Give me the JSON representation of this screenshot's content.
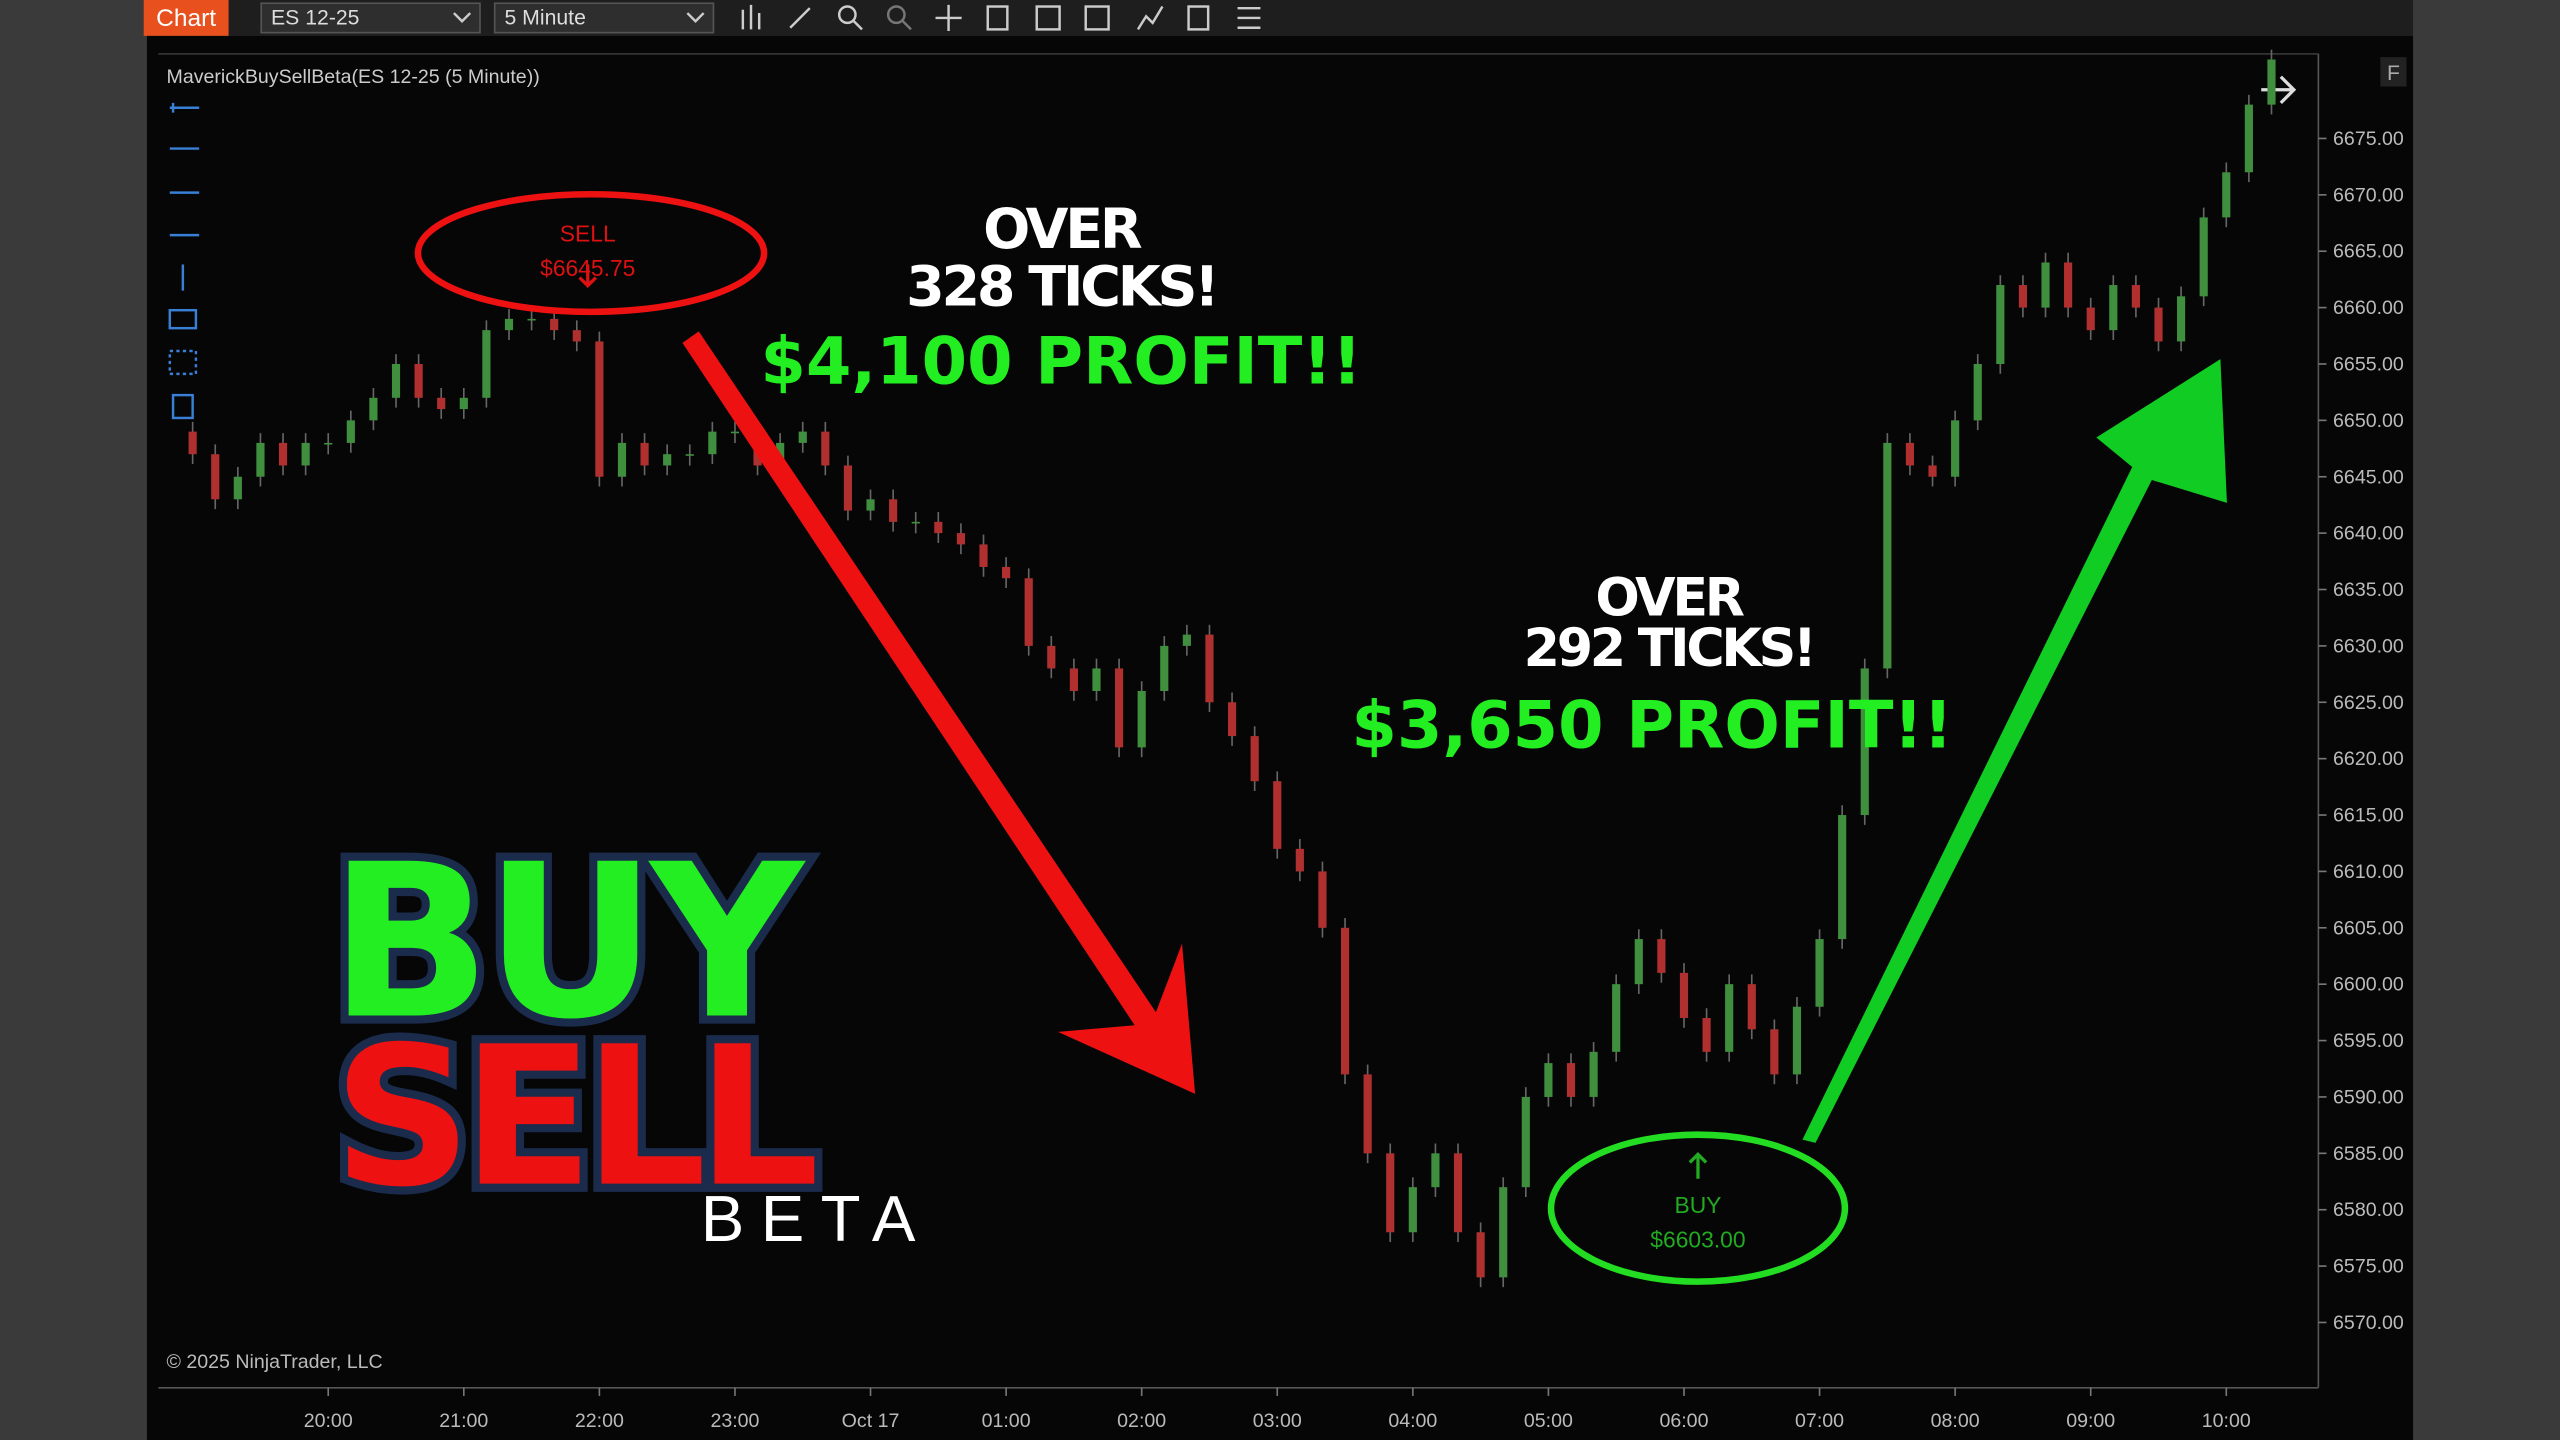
{
  "toolbar": {
    "chart_button": "Chart",
    "instrument": "ES 12-25",
    "interval": "5 Minute"
  },
  "chart": {
    "type": "candlestick",
    "indicator_label": "MaverickBuySellBeta(ES 12-25 (5 Minute))",
    "copyright": "© 2025 NinjaTrader, LLC",
    "corner_button": "F",
    "ylim": [
      6564.5,
      6682.5
    ],
    "yticks": [
      {
        "value": 6570,
        "label": "6570.00"
      },
      {
        "value": 6575,
        "label": "6575.00"
      },
      {
        "value": 6580,
        "label": "6580.00"
      },
      {
        "value": 6585,
        "label": "6585.00"
      },
      {
        "value": 6590,
        "label": "6590.00"
      },
      {
        "value": 6595,
        "label": "6595.00"
      },
      {
        "value": 6600,
        "label": "6600.00"
      },
      {
        "value": 6605,
        "label": "6605.00"
      },
      {
        "value": 6610,
        "label": "6610.00"
      },
      {
        "value": 6615,
        "label": "6615.00"
      },
      {
        "value": 6620,
        "label": "6620.00"
      },
      {
        "value": 6625,
        "label": "6625.00"
      },
      {
        "value": 6630,
        "label": "6630.00"
      },
      {
        "value": 6635,
        "label": "6635.00"
      },
      {
        "value": 6640,
        "label": "6640.00"
      },
      {
        "value": 6645,
        "label": "6645.00"
      },
      {
        "value": 6650,
        "label": "6650.00"
      },
      {
        "value": 6655,
        "label": "6655.00"
      },
      {
        "value": 6660,
        "label": "6660.00"
      },
      {
        "value": 6665,
        "label": "6665.00"
      },
      {
        "value": 6670,
        "label": "6670.00"
      },
      {
        "value": 6675,
        "label": "6675.00"
      }
    ],
    "time_labels": [
      "20:00",
      "21:00",
      "22:00",
      "23:00",
      "Oct 17",
      "01:00",
      "02:00",
      "03:00",
      "04:00",
      "05:00",
      "06:00",
      "07:00",
      "08:00",
      "09:00",
      "10:00"
    ],
    "first_open": 6649,
    "closes": [
      6647,
      6643,
      6645,
      6648,
      6646,
      6648,
      6648,
      6650,
      6652,
      6655,
      6652,
      6651,
      6652,
      6658,
      6659,
      6659,
      6658,
      6657,
      6645,
      6648,
      6646,
      6647,
      6647,
      6649,
      6649,
      6646,
      6648,
      6649,
      6646,
      6642,
      6643,
      6641,
      6641,
      6640,
      6639,
      6637,
      6636,
      6630,
      6628,
      6626,
      6628,
      6621,
      6626,
      6630,
      6631,
      6625,
      6622,
      6618,
      6612,
      6610,
      6605,
      6592,
      6585,
      6578,
      6582,
      6585,
      6578,
      6574,
      6582,
      6590,
      6593,
      6590,
      6594,
      6600,
      6604,
      6601,
      6597,
      6594,
      6600,
      6596,
      6592,
      6598,
      6604,
      6615,
      6628,
      6648,
      6646,
      6645,
      6650,
      6655,
      6662,
      6660,
      6664,
      6660,
      6658,
      6662,
      6660,
      6657,
      6661,
      6668,
      6672,
      6678,
      6682
    ],
    "up_color": "#3f8f3f",
    "down_color": "#b03030"
  },
  "signals": {
    "sell_label": "SELL",
    "sell_price": "$6645.75",
    "buy_label": "BUY",
    "buy_price": "$6603.00"
  },
  "promo": {
    "trade1_line1": "OVER",
    "trade1_line2": "328 TICKS!",
    "trade1_profit": "$4,100 PROFIT!!",
    "trade2_line1": "OVER",
    "trade2_line2": "292 TICKS!",
    "trade2_profit": "$3,650 PROFIT!!",
    "logo_buy": "BUY",
    "logo_sell": "SELL",
    "logo_beta": "BETA"
  }
}
